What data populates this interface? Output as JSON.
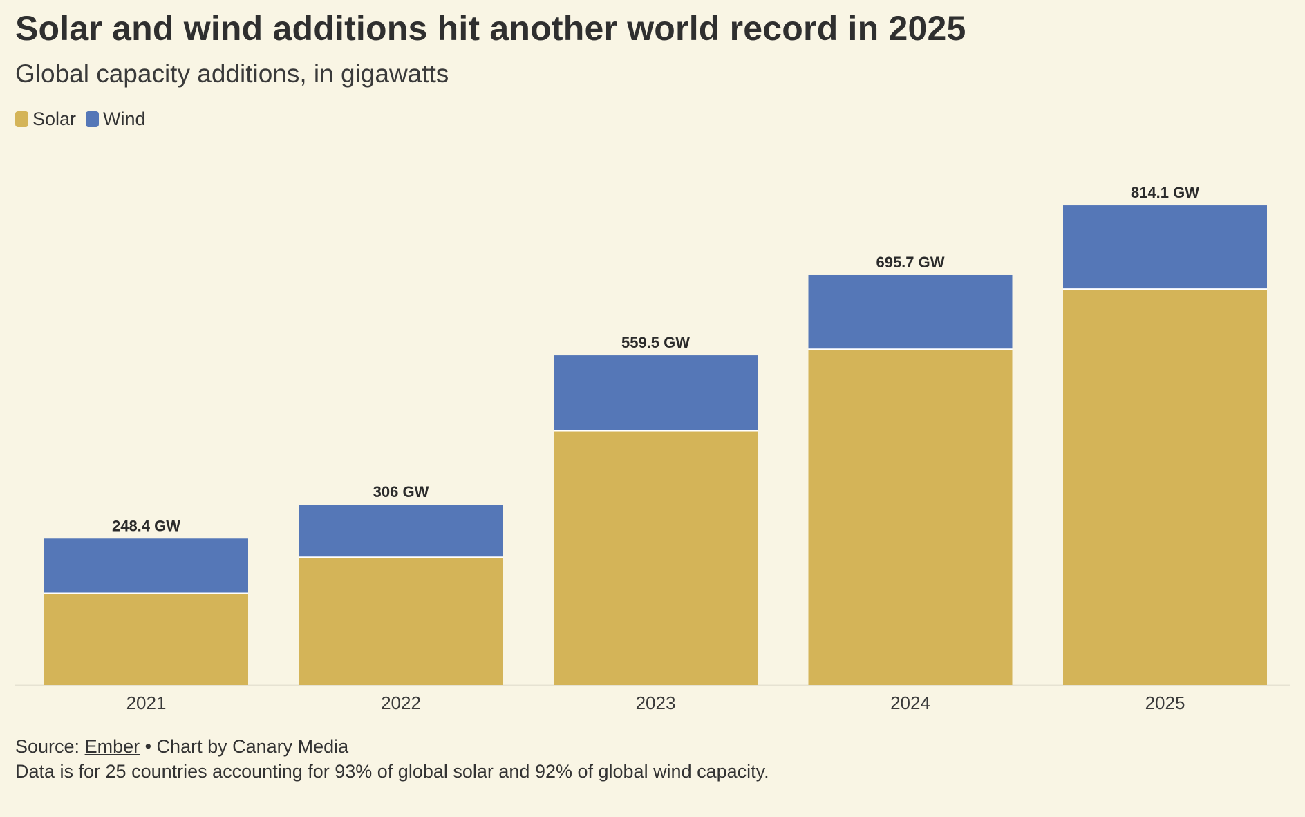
{
  "header": {
    "title": "Solar and wind additions hit another world record in 2025",
    "subtitle": "Global capacity additions, in gigawatts"
  },
  "legend": {
    "items": [
      {
        "label": "Solar",
        "color": "#d4b458"
      },
      {
        "label": "Wind",
        "color": "#5577b7"
      }
    ]
  },
  "chart_data": {
    "type": "bar",
    "stacked": true,
    "title": "Solar and wind additions hit another world record in 2025",
    "subtitle": "Global capacity additions, in gigawatts",
    "xlabel": "",
    "ylabel": "",
    "ylim": [
      0,
      900
    ],
    "grid": false,
    "legend_position": "top-left",
    "categories": [
      "2021",
      "2022",
      "2023",
      "2024",
      "2025"
    ],
    "series": [
      {
        "name": "Solar",
        "color": "#d4b458",
        "values": [
          155.1,
          216.5,
          431.4,
          569.5,
          671.8
        ]
      },
      {
        "name": "Wind",
        "color": "#5577b7",
        "values": [
          93.3,
          89.5,
          128.1,
          126.2,
          142.3
        ]
      }
    ],
    "total_labels": [
      "248.4 GW",
      "306 GW",
      "559.5 GW",
      "695.7 GW",
      "814.1 GW"
    ]
  },
  "footer": {
    "source_prefix": "Source: ",
    "source_link": "Ember",
    "source_suffix": " • Chart by Canary Media",
    "note": "Data is for 25 countries accounting for 93% of global solar and 92% of global wind capacity."
  }
}
